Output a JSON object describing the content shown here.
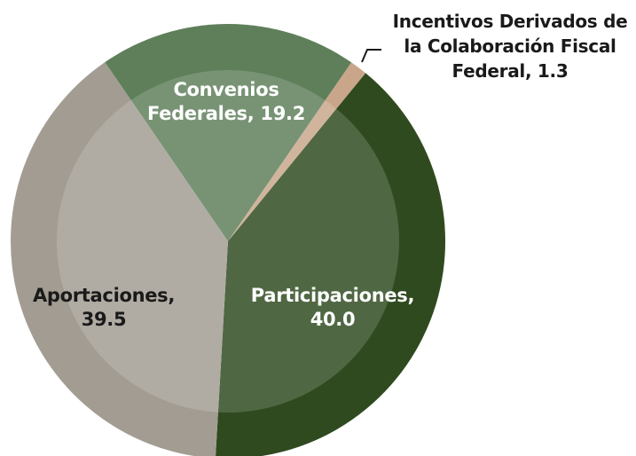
{
  "chart_data": {
    "type": "pie",
    "categories": [
      "Convenios Federales,",
      "Incentivos Derivados de la Colaboración Fiscal Federal,",
      "Participaciones,",
      "Aportaciones,"
    ],
    "values": [
      19.2,
      1.3,
      40.0,
      39.5
    ],
    "value_labels": [
      "19.2",
      "1.3",
      "40.0",
      "39.5"
    ],
    "colors": [
      "#5e7f5a",
      "#c9a68a",
      "#2f4a1f",
      "#a39c92"
    ],
    "label_colors": [
      "#ffffff",
      "#1a1a1a",
      "#ffffff",
      "#1a1a1a"
    ],
    "start_angle": -34.5
  }
}
